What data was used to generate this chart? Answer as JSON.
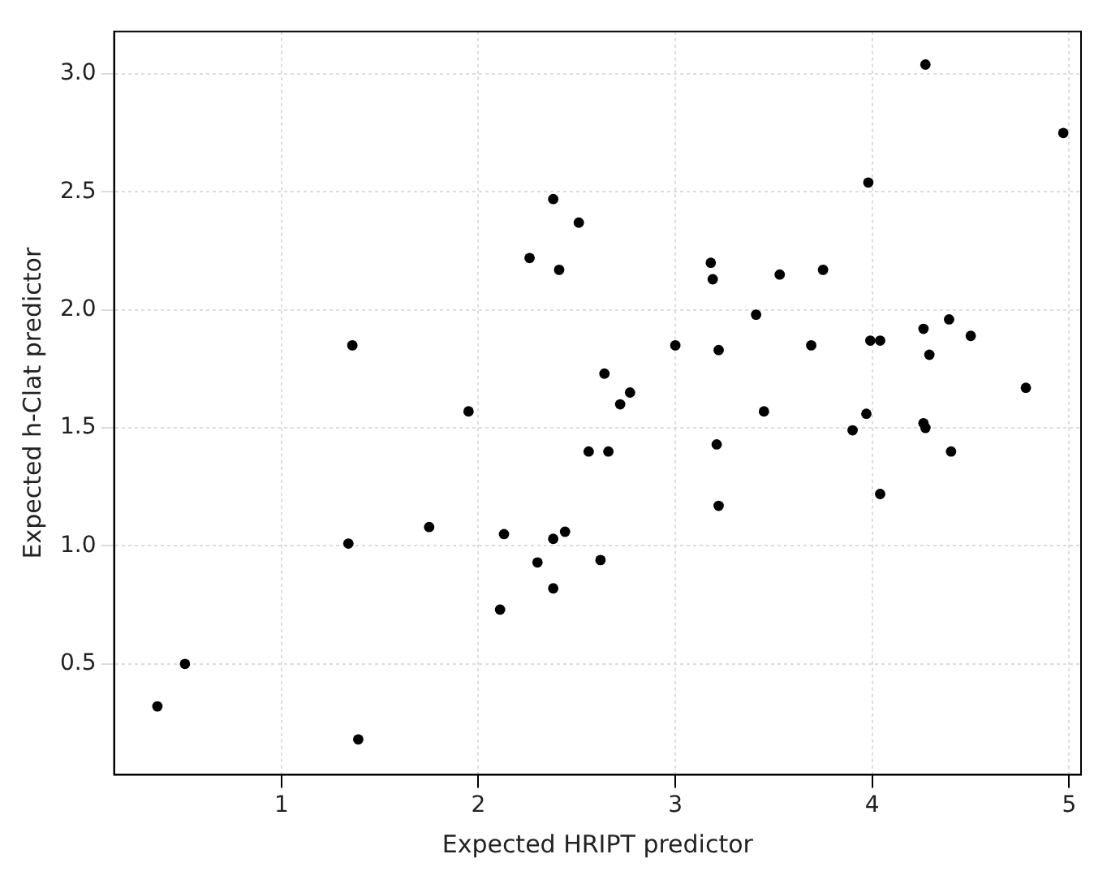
{
  "chart_data": {
    "type": "scatter",
    "xlabel": "Expected HRIPT predictor",
    "ylabel": "Expected h-Clat predictor",
    "x": [
      0.37,
      0.51,
      1.34,
      1.36,
      1.39,
      1.75,
      1.95,
      2.11,
      2.13,
      2.26,
      2.3,
      2.38,
      2.38,
      2.38,
      2.41,
      2.44,
      2.51,
      2.56,
      2.62,
      2.64,
      2.66,
      2.72,
      2.77,
      3.0,
      3.18,
      3.19,
      3.22,
      3.21,
      3.22,
      3.41,
      3.45,
      3.53,
      3.69,
      3.75,
      3.9,
      3.97,
      3.98,
      3.99,
      4.04,
      4.04,
      4.26,
      4.26,
      4.27,
      4.27,
      4.29,
      4.39,
      4.4,
      4.5,
      4.78,
      4.97
    ],
    "series": [
      {
        "color": "#000000",
        "values": [
          0.32,
          0.5,
          1.01,
          1.85,
          0.18,
          1.08,
          1.57,
          0.73,
          1.05,
          2.22,
          0.93,
          2.47,
          1.03,
          0.82,
          2.17,
          1.06,
          2.37,
          1.4,
          0.94,
          1.73,
          1.4,
          1.6,
          1.65,
          1.85,
          2.2,
          2.13,
          1.83,
          1.43,
          1.17,
          1.98,
          1.57,
          2.15,
          1.85,
          2.17,
          1.49,
          1.56,
          2.54,
          1.87,
          1.87,
          1.22,
          1.92,
          1.52,
          1.5,
          3.04,
          1.81,
          1.96,
          1.4,
          1.89,
          1.67,
          2.75
        ]
      }
    ],
    "xlim": [
      0.15,
      5.06
    ],
    "xticks": [
      1,
      2,
      3,
      4,
      5
    ],
    "ylim": [
      0.03,
      3.18
    ],
    "yticks": [
      0.5,
      {
        "value": 1,
        "label": "1.0"
      },
      1.5,
      {
        "value": 2,
        "label": "2.0"
      },
      2.5,
      {
        "value": 3,
        "label": "3.0"
      }
    ],
    "grid": true,
    "marker": "circle",
    "legend": false
  }
}
